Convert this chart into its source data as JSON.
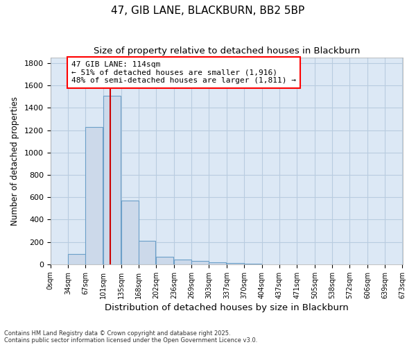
{
  "title": "47, GIB LANE, BLACKBURN, BB2 5BP",
  "subtitle": "Size of property relative to detached houses in Blackburn",
  "xlabel": "Distribution of detached houses by size in Blackburn",
  "ylabel": "Number of detached properties",
  "bar_color": "#ccd9ea",
  "bar_edge_color": "#6b9fc8",
  "plot_bg_color": "#dce8f5",
  "fig_bg_color": "#ffffff",
  "grid_color": "#b8cce0",
  "vline_x": 114,
  "vline_color": "#cc0000",
  "annotation_text": "47 GIB LANE: 114sqm\n← 51% of detached houses are smaller (1,916)\n48% of semi-detached houses are larger (1,811) →",
  "bins_left": [
    0,
    34,
    67,
    101,
    135,
    168,
    202,
    236,
    269,
    303,
    337,
    370,
    404,
    437,
    471,
    505,
    538,
    572,
    606,
    639
  ],
  "bin_width": 33,
  "bar_heights": [
    0,
    90,
    1230,
    1510,
    570,
    210,
    65,
    45,
    30,
    20,
    10,
    5,
    0,
    0,
    0,
    0,
    0,
    0,
    0,
    0
  ],
  "xlim": [
    0,
    673
  ],
  "ylim": [
    0,
    1850
  ],
  "yticks": [
    0,
    200,
    400,
    600,
    800,
    1000,
    1200,
    1400,
    1600,
    1800
  ],
  "xtick_labels": [
    "0sqm",
    "34sqm",
    "67sqm",
    "101sqm",
    "135sqm",
    "168sqm",
    "202sqm",
    "236sqm",
    "269sqm",
    "303sqm",
    "337sqm",
    "370sqm",
    "404sqm",
    "437sqm",
    "471sqm",
    "505sqm",
    "538sqm",
    "572sqm",
    "606sqm",
    "639sqm",
    "673sqm"
  ],
  "footer_text": "Contains HM Land Registry data © Crown copyright and database right 2025.\nContains public sector information licensed under the Open Government Licence v3.0.",
  "figsize": [
    6.0,
    5.0
  ],
  "dpi": 100
}
